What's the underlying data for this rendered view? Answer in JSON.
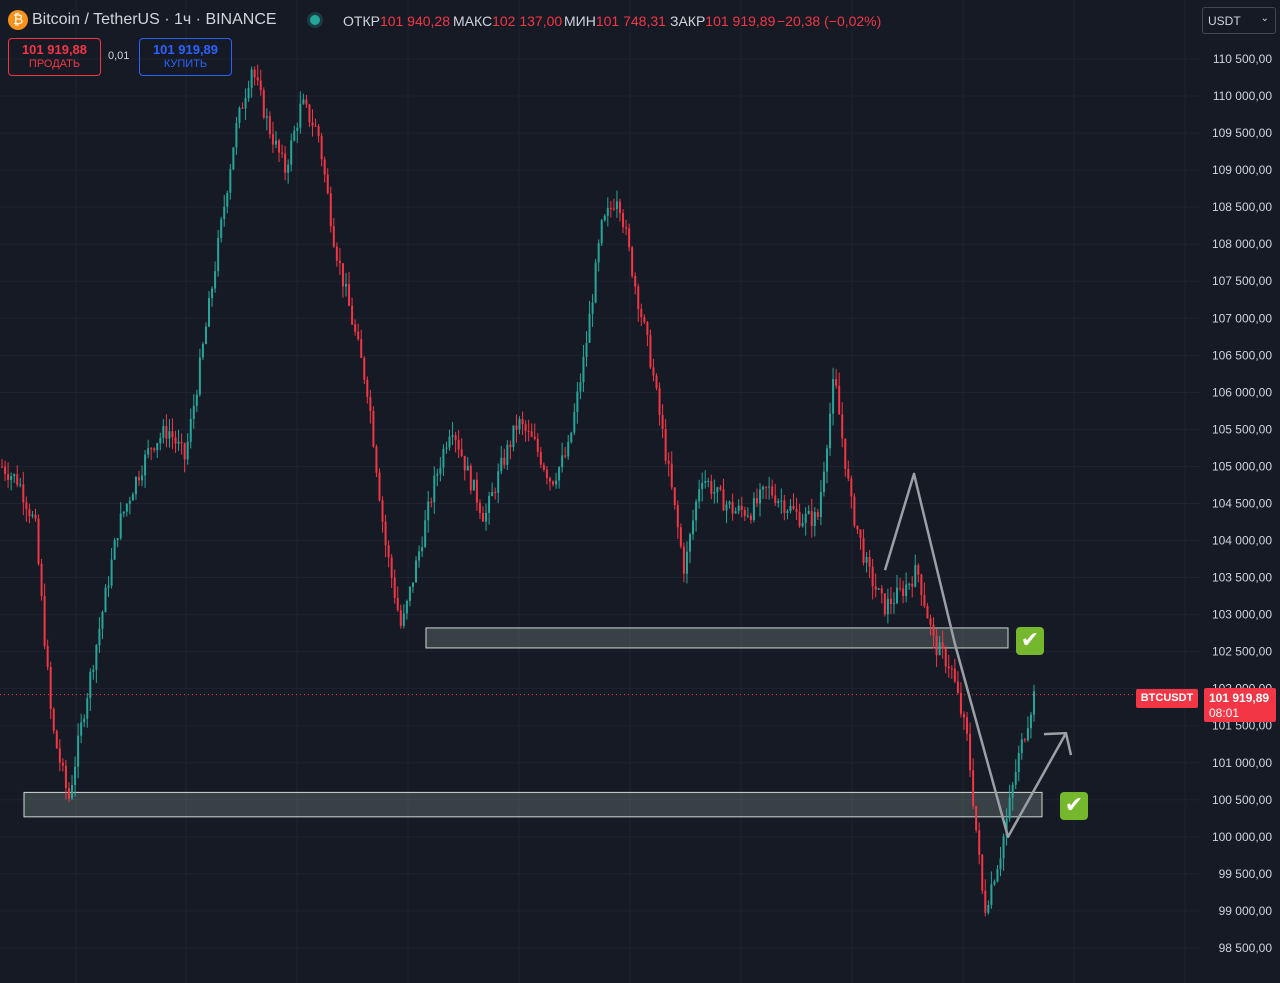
{
  "header": {
    "symbol_title": "Bitcoin / TetherUS · 1ч · BINANCE",
    "ohlc": [
      {
        "key": "ОТКР",
        "value": "101 940,28"
      },
      {
        "key": "МАКС",
        "value": "102 137,00"
      },
      {
        "key": "МИН",
        "value": "101 748,31"
      },
      {
        "key": "ЗАКР",
        "value": "101 919,89"
      }
    ],
    "change": "−20,38 (−0,02%)"
  },
  "trade": {
    "sell_price": "101 919,88",
    "sell_label": "ПРОДАТЬ",
    "spread": "0,01",
    "buy_price": "101 919,89",
    "buy_label": "КУПИТЬ"
  },
  "currency": "USDT",
  "price_tag": {
    "symbol": "BTCUSDT",
    "price": "101 919,89",
    "countdown": "08:01"
  },
  "colors": {
    "background": "#161a25",
    "up": "#26a69a",
    "down": "#f23645",
    "grid": "#1f2330",
    "zone_fill": "rgba(120,140,130,0.35)",
    "zone_stroke": "#cfd8d3",
    "arrow": "#9aa0a6",
    "check": "#75b72d"
  },
  "chart_data": {
    "type": "candlestick",
    "ylim": [
      98300,
      110800
    ],
    "y_ticks": [
      98500,
      99000,
      99500,
      100000,
      100500,
      101000,
      101500,
      102000,
      102500,
      103000,
      103500,
      104000,
      104500,
      105000,
      105500,
      106000,
      106500,
      107000,
      107500,
      108000,
      108500,
      109000,
      109500,
      110000,
      110500
    ],
    "y_tick_labels": [
      "98 500,00",
      "99 000,00",
      "99 500,00",
      "100 000,00",
      "100 500,00",
      "101 000,00",
      "101 500,00",
      "102 000,00",
      "102 500,00",
      "103 000,00",
      "103 500,00",
      "104 000,00",
      "104 500,00",
      "105 000,00",
      "105 500,00",
      "106 000,00",
      "106 500,00",
      "107 000,00",
      "107 500,00",
      "108 000,00",
      "108 500,00",
      "109 000,00",
      "109 500,00",
      "110 000,00",
      "110 500,00"
    ],
    "price_anchors": [
      105000,
      104800,
      104200,
      101500,
      100500,
      101800,
      103000,
      104200,
      104800,
      105300,
      105500,
      105100,
      106500,
      108000,
      109500,
      110400,
      109600,
      109000,
      109900,
      109500,
      108000,
      107000,
      106000,
      104000,
      102800,
      103800,
      104800,
      105600,
      104900,
      104300,
      105000,
      105600,
      105300,
      104800,
      105200,
      106500,
      108200,
      108700,
      107500,
      106400,
      105000,
      103600,
      104900,
      104600,
      104400,
      104400,
      104700,
      104500,
      104300,
      104300,
      106200,
      104500,
      103600,
      103100,
      103300,
      103600,
      102600,
      102300,
      101300,
      99000,
      99800,
      101000,
      101920
    ],
    "zones": [
      {
        "from": 102550,
        "to": 102820
      },
      {
        "from": 100270,
        "to": 100600
      }
    ],
    "current_price": 101919.89,
    "annotation_path_prices": [
      103600,
      104900,
      102600,
      100000,
      101400
    ]
  }
}
